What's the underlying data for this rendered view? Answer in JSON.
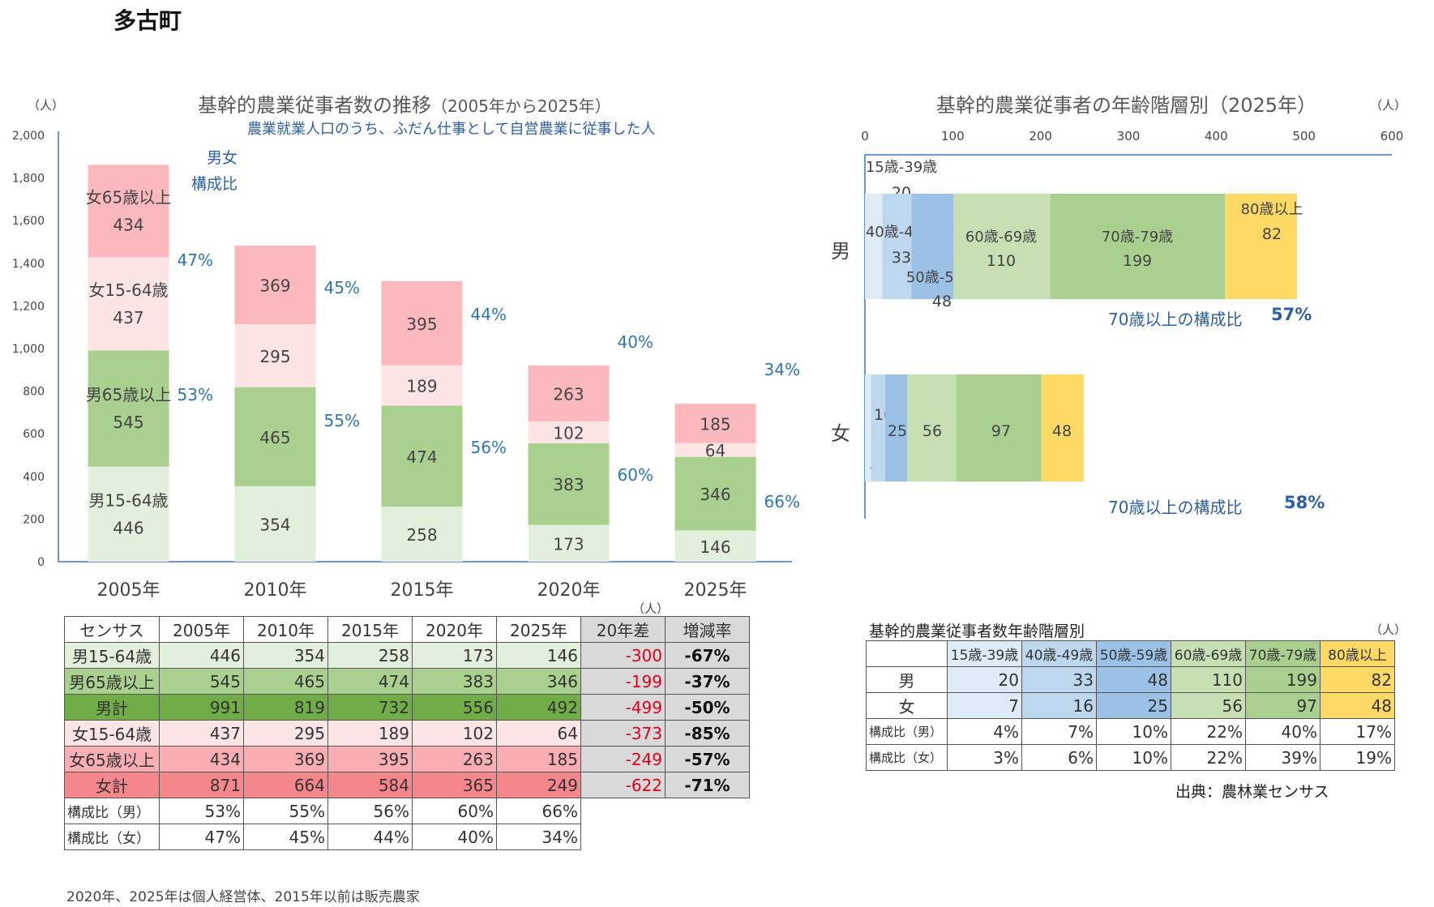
{
  "page_title": "多古町",
  "left_chart": {
    "title": "基幹的農業従事者数の推移",
    "title_paren": "（2005年から2025年）",
    "subtitle": "農業就業人口のうち、ふだん仕事として自営農業に従事した人",
    "unit": "（人）",
    "ratio_legend_line1": "男女",
    "ratio_legend_line2": "構成比"
  },
  "right_chart": {
    "title": "基幹的農業従事者の年齢階層別（2025年）",
    "unit": "（人）",
    "male_label": "男",
    "female_label": "女",
    "ratio70_label": "70歳以上の構成比",
    "male_ratio70": "57%",
    "female_ratio70": "58%"
  },
  "chart_data": [
    {
      "type": "bar",
      "stacked": true,
      "title": "基幹的農業従事者数の推移（2005年から2025年）",
      "subtitle": "農業就業人口のうち、ふだん仕事として自営農業に従事した人",
      "ylabel": "（人）",
      "ylim": [
        0,
        2000
      ],
      "yticks": [
        "0",
        "200",
        "400",
        "600",
        "800",
        "1,000",
        "1,200",
        "1,400",
        "1,600",
        "1,800",
        "2,000"
      ],
      "categories": [
        "2005年",
        "2010年",
        "2015年",
        "2020年",
        "2025年"
      ],
      "series": [
        {
          "name": "男15-64歳",
          "values": [
            446,
            354,
            258,
            173,
            146
          ],
          "color": "#e2efda"
        },
        {
          "name": "男65歳以上",
          "values": [
            545,
            465,
            474,
            383,
            346
          ],
          "color": "#a9d08e"
        },
        {
          "name": "女15-64歳",
          "values": [
            437,
            295,
            189,
            102,
            64
          ],
          "color": "#fde5e6"
        },
        {
          "name": "女65歳以上",
          "values": [
            434,
            369,
            395,
            263,
            185
          ],
          "color": "#fcb9bd"
        }
      ],
      "male_ratio": [
        "53%",
        "55%",
        "56%",
        "60%",
        "66%"
      ],
      "female_ratio": [
        "47%",
        "45%",
        "44%",
        "40%",
        "34%"
      ],
      "grid": false
    },
    {
      "type": "bar",
      "orientation": "horizontal",
      "stacked": true,
      "title": "基幹的農業従事者の年齢階層別（2025年）",
      "xlabel": "（人）",
      "xlim": [
        0,
        600
      ],
      "xticks": [
        "0",
        "100",
        "200",
        "300",
        "400",
        "500",
        "600"
      ],
      "categories": [
        "男",
        "女"
      ],
      "series": [
        {
          "name": "15歳-39歳",
          "values": [
            20,
            7
          ],
          "color": "#ddebf7"
        },
        {
          "name": "40歳-49歳",
          "values": [
            33,
            16
          ],
          "color": "#bdd7ee"
        },
        {
          "name": "50歳-59歳",
          "values": [
            48,
            25
          ],
          "color": "#9bc2e6"
        },
        {
          "name": "60歳-69歳",
          "values": [
            110,
            56
          ],
          "color": "#c6e0b4"
        },
        {
          "name": "70歳-79歳",
          "values": [
            199,
            97
          ],
          "color": "#a9d08e"
        },
        {
          "name": "80歳以上",
          "values": [
            82,
            48
          ],
          "color": "#ffd966"
        }
      ],
      "grid": false
    }
  ],
  "trend_table": {
    "unit": "（人）",
    "headers": [
      "センサス",
      "2005年",
      "2010年",
      "2015年",
      "2020年",
      "2025年",
      "20年差",
      "増減率"
    ],
    "rows": [
      {
        "label": "男15-64歳",
        "values": [
          "446",
          "354",
          "258",
          "173",
          "146"
        ],
        "diff": "-300",
        "rate": "-67%",
        "bg": "#e2efda"
      },
      {
        "label": "男65歳以上",
        "values": [
          "545",
          "465",
          "474",
          "383",
          "346"
        ],
        "diff": "-199",
        "rate": "-37%",
        "bg": "#a9d08e"
      },
      {
        "label": "男計",
        "values": [
          "991",
          "819",
          "732",
          "556",
          "492"
        ],
        "diff": "-499",
        "rate": "-50%",
        "bg": "#70ad47"
      },
      {
        "label": "女15-64歳",
        "values": [
          "437",
          "295",
          "189",
          "102",
          "64"
        ],
        "diff": "-373",
        "rate": "-85%",
        "bg": "#fde5e6"
      },
      {
        "label": "女65歳以上",
        "values": [
          "434",
          "369",
          "395",
          "263",
          "185"
        ],
        "diff": "-249",
        "rate": "-57%",
        "bg": "#f8aeb2"
      },
      {
        "label": "女計",
        "values": [
          "871",
          "664",
          "584",
          "365",
          "249"
        ],
        "diff": "-622",
        "rate": "-71%",
        "bg": "#f4868c"
      }
    ],
    "ratio_rows": [
      {
        "label": "構成比（男）",
        "values": [
          "53%",
          "55%",
          "56%",
          "60%",
          "66%"
        ]
      },
      {
        "label": "構成比（女）",
        "values": [
          "47%",
          "45%",
          "44%",
          "40%",
          "34%"
        ]
      }
    ],
    "footnote": "2020年、2025年は個人経営体、2015年以前は販売農家"
  },
  "age_table": {
    "title": "基幹的農業従事者数年齢階層別",
    "unit": "（人）",
    "headers": [
      "15歳-39歳",
      "40歳-49歳",
      "50歳-59歳",
      "60歳-69歳",
      "70歳-79歳",
      "80歳以上"
    ],
    "header_colors": [
      "#ddebf7",
      "#bdd7ee",
      "#9bc2e6",
      "#c6e0b4",
      "#a9d08e",
      "#ffd966"
    ],
    "rows": [
      {
        "label": "男",
        "values": [
          "20",
          "33",
          "48",
          "110",
          "199",
          "82"
        ]
      },
      {
        "label": "女",
        "values": [
          "7",
          "16",
          "25",
          "56",
          "97",
          "48"
        ]
      }
    ],
    "ratio_rows": [
      {
        "label": "構成比（男）",
        "values": [
          "4%",
          "7%",
          "10%",
          "22%",
          "40%",
          "17%"
        ]
      },
      {
        "label": "構成比（女）",
        "values": [
          "3%",
          "6%",
          "10%",
          "22%",
          "39%",
          "19%"
        ]
      }
    ],
    "source": "出典：農林業センサス"
  }
}
